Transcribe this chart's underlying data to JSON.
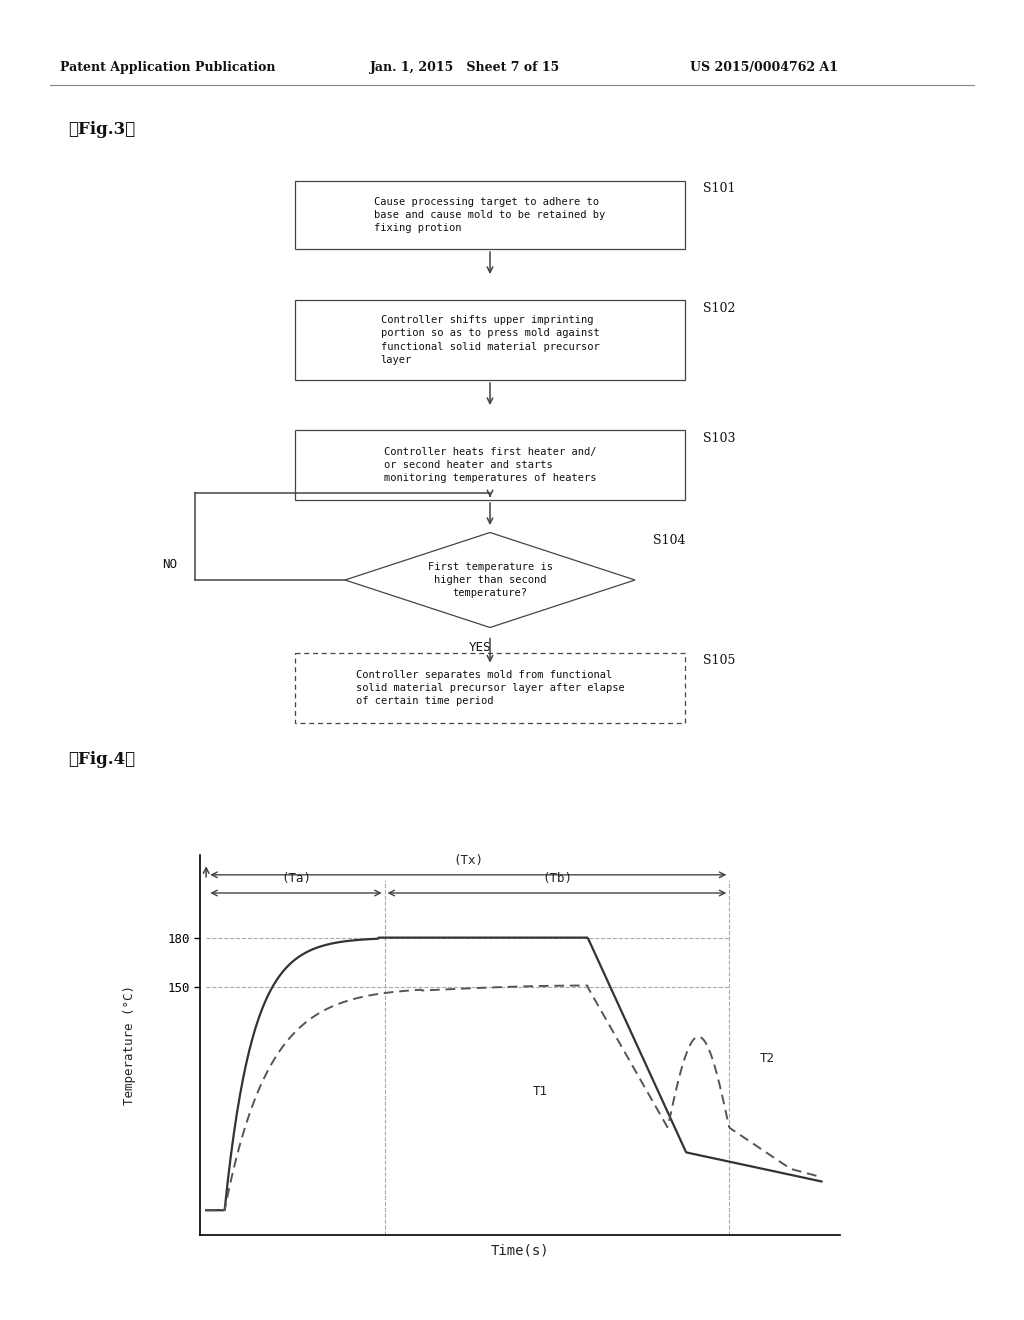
{
  "page_header_left": "Patent Application Publication",
  "page_header_mid": "Jan. 1, 2015   Sheet 7 of 15",
  "page_header_right": "US 2015/0004762 A1",
  "fig3_label": "【Fig.3】",
  "fig4_label": "【Fig.4】",
  "background_color": "#ffffff",
  "text_color": "#111111",
  "s101_text": "Cause processing target to adhere to\nbase and cause mold to be retained by\nfixing protion",
  "s102_text": "Controller shifts upper imprinting\nportion so as to press mold against\nfunctional solid material precursor\nlayer",
  "s103_text": "Controller heats first heater and/\nor second heater and starts\nmonitoring temperatures of heaters",
  "s104_text": "First temperature is\nhigher than second\ntemperature?",
  "s105_text": "Controller separates mold from functional\nsolid material precursor layer after elapse\nof certain time period",
  "no_label": "NO",
  "yes_label": "YES",
  "graph_xlabel": "Time(s)",
  "graph_ylabel": "Temperature (°C)",
  "tx_label": "(Tx)",
  "ta_label": "(Ta)",
  "tb_label": "(Tb)",
  "t1_label": "T1",
  "t2_label": "T2",
  "ytick_150": "150",
  "ytick_180": "180"
}
